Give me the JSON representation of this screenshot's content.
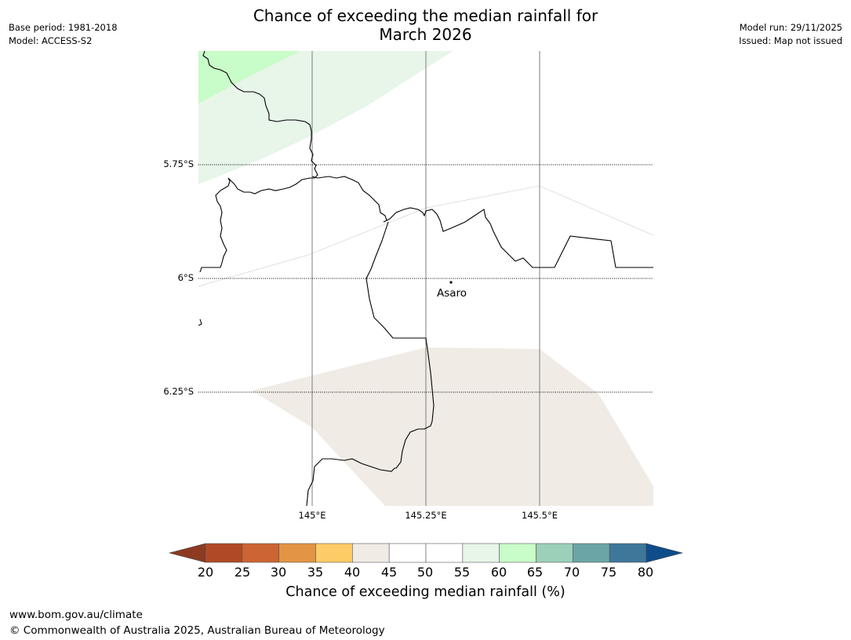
{
  "title": {
    "line1": "Chance of exceeding the median rainfall for",
    "line2": "March 2026"
  },
  "meta": {
    "base_period": "Base period: 1981-2018",
    "model": "Model: ACCESS-S2",
    "model_run": "Model run: 29/11/2025",
    "issued": "Issued: Map not issued"
  },
  "map": {
    "lat_labels": [
      "5.75°S",
      "6°S",
      "6.25°S"
    ],
    "lon_labels": [
      "145°E",
      "145.25°E",
      "145.5°E"
    ],
    "place_label": "Asaro",
    "colors": {
      "c40_45": "#f0ebe5",
      "c55_60": "#e8f5e9",
      "c60_65": "#c8fcc8",
      "coast": "#000000",
      "meridian": "#888888"
    }
  },
  "colorbar": {
    "title": "Chance of exceeding median rainfall (%)",
    "ticks": [
      "20",
      "25",
      "30",
      "35",
      "40",
      "45",
      "50",
      "55",
      "60",
      "65",
      "70",
      "75",
      "80"
    ],
    "low_extend_color": "#8c3a22",
    "high_extend_color": "#0f4c8a",
    "bins": [
      "#b04a26",
      "#cc6533",
      "#e39545",
      "#fdcc66",
      "#f0ebe5",
      "#ffffff",
      "#ffffff",
      "#e8f5e9",
      "#c8fcc8",
      "#9dd0b8",
      "#6ca5a6",
      "#3d7799"
    ]
  },
  "footer": {
    "url": "www.bom.gov.au/climate",
    "copyright": "© Commonwealth of Australia 2025, Australian Bureau of Meteorology"
  }
}
